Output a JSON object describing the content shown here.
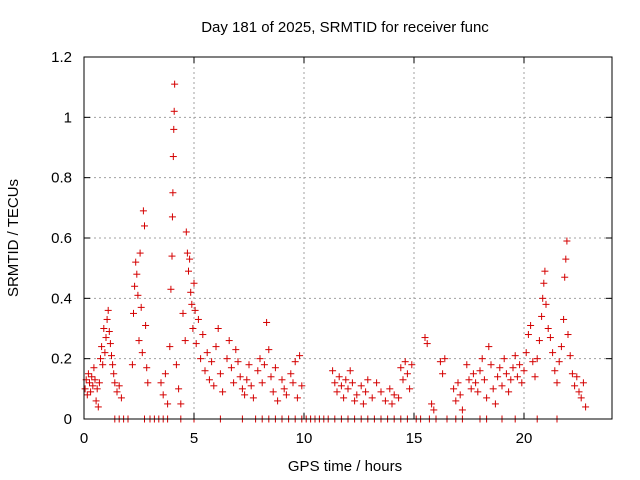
{
  "chart_data": {
    "type": "scatter",
    "title": "Day 181 of 2025, SRMTID for receiver func",
    "xlabel": "GPS time / hours",
    "ylabel": "SRMTID / TECUs",
    "xlim": [
      0,
      24
    ],
    "ylim": [
      0,
      1.2
    ],
    "x_ticks": [
      0,
      5,
      10,
      15,
      20
    ],
    "x_tick_labels": [
      "0",
      "5",
      "10",
      "15",
      "20"
    ],
    "y_ticks": [
      0,
      0.2,
      0.4,
      0.6,
      0.8,
      1.0,
      1.2
    ],
    "y_tick_labels": [
      "0",
      "0.2",
      "0.4",
      "0.6",
      "0.8",
      "1",
      "1.2"
    ],
    "grid": true,
    "marker": "+",
    "color": "#d40000",
    "series": [
      {
        "name": "SRMTID",
        "points": [
          [
            0.05,
            0.1
          ],
          [
            0.1,
            0.13
          ],
          [
            0.15,
            0.08
          ],
          [
            0.2,
            0.15
          ],
          [
            0.25,
            0.12
          ],
          [
            0.3,
            0.09
          ],
          [
            0.35,
            0.14
          ],
          [
            0.4,
            0.11
          ],
          [
            0.45,
            0.17
          ],
          [
            0.5,
            0.13
          ],
          [
            0.55,
            0.06
          ],
          [
            0.6,
            0.1
          ],
          [
            0.65,
            0.04
          ],
          [
            0.7,
            0.12
          ],
          [
            0.75,
            0.2
          ],
          [
            0.8,
            0.24
          ],
          [
            0.85,
            0.18
          ],
          [
            0.9,
            0.3
          ],
          [
            0.95,
            0.22
          ],
          [
            1.0,
            0.27
          ],
          [
            1.05,
            0.33
          ],
          [
            1.1,
            0.36
          ],
          [
            1.15,
            0.29
          ],
          [
            1.2,
            0.25
          ],
          [
            1.25,
            0.21
          ],
          [
            1.3,
            0.18
          ],
          [
            1.35,
            0.15
          ],
          [
            1.4,
            0.12
          ],
          [
            1.5,
            0.09
          ],
          [
            1.6,
            0.11
          ],
          [
            1.7,
            0.07
          ],
          [
            1.4,
            0.0
          ],
          [
            1.6,
            0.0
          ],
          [
            1.8,
            0.0
          ],
          [
            2.0,
            0.0
          ],
          [
            2.2,
            0.18
          ],
          [
            2.25,
            0.35
          ],
          [
            2.3,
            0.44
          ],
          [
            2.35,
            0.52
          ],
          [
            2.4,
            0.48
          ],
          [
            2.45,
            0.41
          ],
          [
            2.5,
            0.26
          ],
          [
            2.55,
            0.55
          ],
          [
            2.6,
            0.37
          ],
          [
            2.65,
            0.22
          ],
          [
            2.7,
            0.69
          ],
          [
            2.75,
            0.64
          ],
          [
            2.8,
            0.31
          ],
          [
            2.85,
            0.17
          ],
          [
            2.9,
            0.12
          ],
          [
            2.75,
            0.0
          ],
          [
            3.0,
            0.0
          ],
          [
            3.2,
            0.0
          ],
          [
            3.4,
            0.0
          ],
          [
            3.6,
            0.0
          ],
          [
            3.8,
            0.0
          ],
          [
            3.5,
            0.12
          ],
          [
            3.6,
            0.08
          ],
          [
            3.7,
            0.15
          ],
          [
            3.8,
            0.05
          ],
          [
            3.9,
            0.24
          ],
          [
            3.95,
            0.43
          ],
          [
            4.0,
            0.54
          ],
          [
            4.02,
            0.67
          ],
          [
            4.04,
            0.75
          ],
          [
            4.06,
            0.87
          ],
          [
            4.08,
            0.96
          ],
          [
            4.1,
            1.02
          ],
          [
            4.12,
            1.11
          ],
          [
            4.2,
            0.18
          ],
          [
            4.3,
            0.1
          ],
          [
            4.4,
            0.05
          ],
          [
            4.5,
            0.35
          ],
          [
            4.6,
            0.26
          ],
          [
            4.65,
            0.62
          ],
          [
            4.7,
            0.55
          ],
          [
            4.75,
            0.49
          ],
          [
            4.8,
            0.53
          ],
          [
            4.85,
            0.42
          ],
          [
            4.9,
            0.38
          ],
          [
            4.95,
            0.3
          ],
          [
            5.0,
            0.45
          ],
          [
            5.05,
            0.36
          ],
          [
            5.1,
            0.25
          ],
          [
            5.2,
            0.33
          ],
          [
            5.3,
            0.2
          ],
          [
            5.4,
            0.28
          ],
          [
            5.5,
            0.16
          ],
          [
            5.6,
            0.22
          ],
          [
            5.7,
            0.13
          ],
          [
            5.8,
            0.19
          ],
          [
            5.9,
            0.11
          ],
          [
            6.0,
            0.24
          ],
          [
            6.1,
            0.3
          ],
          [
            6.2,
            0.15
          ],
          [
            6.3,
            0.09
          ],
          [
            6.5,
            0.2
          ],
          [
            6.6,
            0.26
          ],
          [
            6.7,
            0.17
          ],
          [
            6.8,
            0.12
          ],
          [
            6.9,
            0.23
          ],
          [
            7.0,
            0.19
          ],
          [
            7.1,
            0.14
          ],
          [
            7.2,
            0.1
          ],
          [
            7.3,
            0.08
          ],
          [
            7.4,
            0.13
          ],
          [
            7.5,
            0.18
          ],
          [
            7.6,
            0.11
          ],
          [
            7.7,
            0.07
          ],
          [
            4.4,
            0.0
          ],
          [
            5.0,
            0.0
          ],
          [
            6.2,
            0.0
          ],
          [
            7.2,
            0.0
          ],
          [
            7.8,
            0.0
          ],
          [
            8.1,
            0.0
          ],
          [
            8.4,
            0.0
          ],
          [
            8.7,
            0.0
          ],
          [
            9.0,
            0.0
          ],
          [
            7.9,
            0.16
          ],
          [
            8.0,
            0.2
          ],
          [
            8.1,
            0.12
          ],
          [
            8.2,
            0.18
          ],
          [
            8.3,
            0.32
          ],
          [
            8.4,
            0.23
          ],
          [
            8.5,
            0.14
          ],
          [
            8.6,
            0.09
          ],
          [
            8.7,
            0.17
          ],
          [
            8.8,
            0.06
          ],
          [
            9.0,
            0.13
          ],
          [
            9.1,
            0.1
          ],
          [
            9.2,
            0.08
          ],
          [
            9.4,
            0.15
          ],
          [
            9.5,
            0.12
          ],
          [
            9.6,
            0.19
          ],
          [
            9.7,
            0.07
          ],
          [
            9.8,
            0.21
          ],
          [
            9.9,
            0.11
          ],
          [
            9.3,
            0.0
          ],
          [
            9.6,
            0.0
          ],
          [
            9.9,
            0.0
          ],
          [
            10.1,
            0.0
          ],
          [
            10.3,
            0.0
          ],
          [
            10.5,
            0.0
          ],
          [
            10.7,
            0.0
          ],
          [
            10.9,
            0.0
          ],
          [
            11.1,
            0.0
          ],
          [
            11.4,
            0.0
          ],
          [
            11.3,
            0.16
          ],
          [
            11.4,
            0.12
          ],
          [
            11.5,
            0.09
          ],
          [
            11.6,
            0.14
          ],
          [
            11.7,
            0.11
          ],
          [
            11.8,
            0.07
          ],
          [
            11.9,
            0.13
          ],
          [
            12.0,
            0.1
          ],
          [
            12.1,
            0.16
          ],
          [
            12.2,
            0.12
          ],
          [
            12.3,
            0.06
          ],
          [
            12.4,
            0.08
          ],
          [
            12.6,
            0.11
          ],
          [
            12.7,
            0.05
          ],
          [
            12.8,
            0.09
          ],
          [
            12.9,
            0.13
          ],
          [
            13.1,
            0.07
          ],
          [
            13.3,
            0.12
          ],
          [
            13.5,
            0.09
          ],
          [
            13.7,
            0.06
          ],
          [
            13.9,
            0.1
          ],
          [
            14.0,
            0.05
          ],
          [
            14.1,
            0.08
          ],
          [
            14.3,
            0.07
          ],
          [
            11.7,
            0.0
          ],
          [
            12.0,
            0.0
          ],
          [
            12.3,
            0.0
          ],
          [
            12.6,
            0.0
          ],
          [
            12.9,
            0.0
          ],
          [
            13.2,
            0.0
          ],
          [
            13.5,
            0.0
          ],
          [
            13.8,
            0.0
          ],
          [
            14.1,
            0.0
          ],
          [
            14.4,
            0.0
          ],
          [
            14.4,
            0.17
          ],
          [
            14.5,
            0.13
          ],
          [
            14.6,
            0.19
          ],
          [
            14.7,
            0.15
          ],
          [
            14.8,
            0.1
          ],
          [
            14.9,
            0.18
          ],
          [
            15.5,
            0.27
          ],
          [
            15.6,
            0.25
          ],
          [
            15.8,
            0.05
          ],
          [
            15.9,
            0.03
          ],
          [
            16.2,
            0.19
          ],
          [
            16.3,
            0.15
          ],
          [
            16.4,
            0.2
          ],
          [
            14.7,
            0.0
          ],
          [
            15.1,
            0.0
          ],
          [
            15.3,
            0.0
          ],
          [
            15.7,
            0.0
          ],
          [
            16.0,
            0.0
          ],
          [
            16.5,
            0.0
          ],
          [
            16.9,
            0.0
          ],
          [
            17.2,
            0.0
          ],
          [
            16.8,
            0.1
          ],
          [
            16.9,
            0.06
          ],
          [
            17.0,
            0.12
          ],
          [
            17.1,
            0.08
          ],
          [
            17.2,
            0.03
          ],
          [
            17.4,
            0.18
          ],
          [
            17.5,
            0.13
          ],
          [
            17.6,
            0.1
          ],
          [
            17.7,
            0.15
          ],
          [
            17.8,
            0.12
          ],
          [
            17.9,
            0.09
          ],
          [
            18.0,
            0.16
          ],
          [
            18.1,
            0.2
          ],
          [
            18.2,
            0.13
          ],
          [
            18.3,
            0.07
          ],
          [
            18.4,
            0.24
          ],
          [
            18.5,
            0.18
          ],
          [
            18.6,
            0.1
          ],
          [
            18.7,
            0.05
          ],
          [
            18.8,
            0.14
          ],
          [
            18.9,
            0.17
          ],
          [
            19.0,
            0.11
          ],
          [
            19.1,
            0.2
          ],
          [
            19.2,
            0.15
          ],
          [
            19.3,
            0.09
          ],
          [
            19.4,
            0.13
          ],
          [
            19.5,
            0.17
          ],
          [
            19.6,
            0.21
          ],
          [
            19.7,
            0.14
          ],
          [
            19.8,
            0.18
          ],
          [
            19.9,
            0.12
          ],
          [
            20.0,
            0.16
          ],
          [
            20.1,
            0.22
          ],
          [
            20.2,
            0.28
          ],
          [
            20.3,
            0.31
          ],
          [
            20.4,
            0.19
          ],
          [
            20.5,
            0.14
          ],
          [
            20.6,
            0.2
          ],
          [
            20.7,
            0.26
          ],
          [
            20.8,
            0.34
          ],
          [
            20.85,
            0.4
          ],
          [
            20.9,
            0.45
          ],
          [
            20.95,
            0.49
          ],
          [
            21.0,
            0.38
          ],
          [
            21.1,
            0.3
          ],
          [
            21.2,
            0.27
          ],
          [
            21.3,
            0.22
          ],
          [
            21.4,
            0.16
          ],
          [
            21.5,
            0.12
          ],
          [
            21.6,
            0.19
          ],
          [
            21.7,
            0.24
          ],
          [
            21.8,
            0.33
          ],
          [
            21.85,
            0.47
          ],
          [
            21.9,
            0.53
          ],
          [
            21.95,
            0.59
          ],
          [
            22.0,
            0.28
          ],
          [
            22.1,
            0.21
          ],
          [
            22.2,
            0.15
          ],
          [
            22.3,
            0.11
          ],
          [
            22.4,
            0.14
          ],
          [
            22.5,
            0.09
          ],
          [
            22.6,
            0.07
          ],
          [
            22.7,
            0.12
          ],
          [
            22.8,
            0.04
          ],
          [
            18.0,
            0.0
          ],
          [
            18.3,
            0.0
          ],
          [
            19.0,
            0.0
          ],
          [
            19.6,
            0.0
          ],
          [
            20.6,
            0.0
          ],
          [
            21.5,
            0.0
          ]
        ]
      }
    ]
  }
}
